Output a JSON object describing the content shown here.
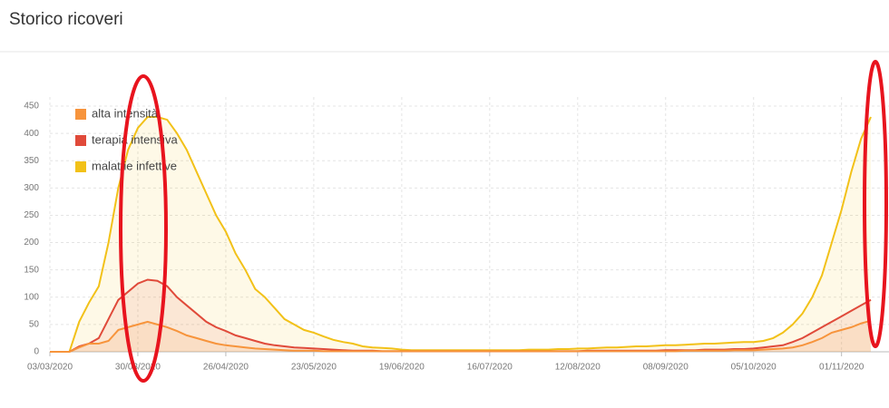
{
  "chart_data": {
    "type": "area",
    "title": "Storico ricoveri",
    "x": [
      "03/03/2020",
      "06/03/2020",
      "09/03/2020",
      "12/03/2020",
      "15/03/2020",
      "18/03/2020",
      "21/03/2020",
      "24/03/2020",
      "27/03/2020",
      "30/03/2020",
      "02/04/2020",
      "05/04/2020",
      "08/04/2020",
      "11/04/2020",
      "14/04/2020",
      "17/04/2020",
      "20/04/2020",
      "23/04/2020",
      "26/04/2020",
      "29/04/2020",
      "02/05/2020",
      "05/05/2020",
      "08/05/2020",
      "11/05/2020",
      "14/05/2020",
      "17/05/2020",
      "20/05/2020",
      "23/05/2020",
      "26/05/2020",
      "29/05/2020",
      "01/06/2020",
      "04/06/2020",
      "07/06/2020",
      "10/06/2020",
      "13/06/2020",
      "16/06/2020",
      "19/06/2020",
      "22/06/2020",
      "25/06/2020",
      "28/06/2020",
      "01/07/2020",
      "04/07/2020",
      "07/07/2020",
      "10/07/2020",
      "13/07/2020",
      "16/07/2020",
      "19/07/2020",
      "22/07/2020",
      "25/07/2020",
      "28/07/2020",
      "31/07/2020",
      "03/08/2020",
      "06/08/2020",
      "09/08/2020",
      "12/08/2020",
      "15/08/2020",
      "18/08/2020",
      "21/08/2020",
      "24/08/2020",
      "27/08/2020",
      "30/08/2020",
      "02/09/2020",
      "05/09/2020",
      "08/09/2020",
      "11/09/2020",
      "14/09/2020",
      "17/09/2020",
      "20/09/2020",
      "23/09/2020",
      "26/09/2020",
      "29/09/2020",
      "02/10/2020",
      "05/10/2020",
      "08/10/2020",
      "11/10/2020",
      "14/10/2020",
      "17/10/2020",
      "20/10/2020",
      "23/10/2020",
      "26/10/2020",
      "29/10/2020",
      "01/11/2020",
      "04/11/2020",
      "07/11/2020",
      "10/11/2020"
    ],
    "series": [
      {
        "name": "alta intensità",
        "color": "#f7943c",
        "values": [
          0,
          0,
          0,
          8,
          15,
          15,
          20,
          40,
          45,
          50,
          55,
          50,
          45,
          38,
          30,
          25,
          20,
          15,
          12,
          10,
          8,
          6,
          5,
          4,
          3,
          2,
          2,
          2,
          1,
          1,
          1,
          1,
          1,
          1,
          1,
          1,
          1,
          1,
          1,
          1,
          1,
          1,
          1,
          1,
          1,
          1,
          1,
          1,
          1,
          1,
          1,
          1,
          1,
          1,
          1,
          1,
          1,
          1,
          1,
          1,
          1,
          1,
          1,
          1,
          1,
          2,
          2,
          2,
          2,
          2,
          3,
          3,
          3,
          4,
          5,
          6,
          8,
          12,
          18,
          25,
          35,
          40,
          45,
          52,
          57
        ]
      },
      {
        "name": "terapia intensiva",
        "color": "#e04a3a",
        "values": [
          0,
          0,
          0,
          10,
          15,
          25,
          60,
          95,
          110,
          125,
          132,
          130,
          120,
          100,
          85,
          70,
          55,
          45,
          38,
          30,
          25,
          20,
          15,
          12,
          10,
          8,
          7,
          6,
          5,
          4,
          3,
          2,
          2,
          2,
          1,
          1,
          1,
          1,
          1,
          1,
          1,
          1,
          1,
          1,
          1,
          1,
          1,
          1,
          1,
          1,
          1,
          1,
          1,
          1,
          1,
          2,
          2,
          2,
          2,
          2,
          2,
          2,
          2,
          3,
          3,
          3,
          3,
          4,
          4,
          4,
          5,
          5,
          6,
          8,
          10,
          12,
          18,
          25,
          35,
          45,
          55,
          65,
          75,
          85,
          95
        ]
      },
      {
        "name": "malattie infettive",
        "color": "#f2c118",
        "values": [
          0,
          0,
          0,
          55,
          90,
          120,
          200,
          300,
          370,
          410,
          430,
          430,
          425,
          400,
          370,
          330,
          290,
          250,
          220,
          180,
          150,
          115,
          100,
          80,
          60,
          50,
          40,
          35,
          28,
          22,
          18,
          15,
          10,
          8,
          7,
          6,
          4,
          3,
          3,
          3,
          3,
          3,
          3,
          3,
          3,
          3,
          3,
          3,
          3,
          4,
          4,
          4,
          5,
          5,
          6,
          6,
          7,
          8,
          8,
          9,
          10,
          10,
          11,
          12,
          12,
          13,
          14,
          15,
          15,
          16,
          17,
          18,
          18,
          20,
          25,
          35,
          50,
          70,
          100,
          140,
          200,
          260,
          330,
          390,
          430
        ]
      }
    ],
    "ylim": [
      0,
      450
    ],
    "yticks": [
      0,
      50,
      100,
      150,
      200,
      250,
      300,
      350,
      400,
      450
    ],
    "xticks": [
      "03/03/2020",
      "30/03/2020",
      "26/04/2020",
      "23/05/2020",
      "19/06/2020",
      "16/07/2020",
      "12/08/2020",
      "08/09/2020",
      "05/10/2020",
      "01/11/2020"
    ],
    "grid": true,
    "legend": "upper left"
  }
}
